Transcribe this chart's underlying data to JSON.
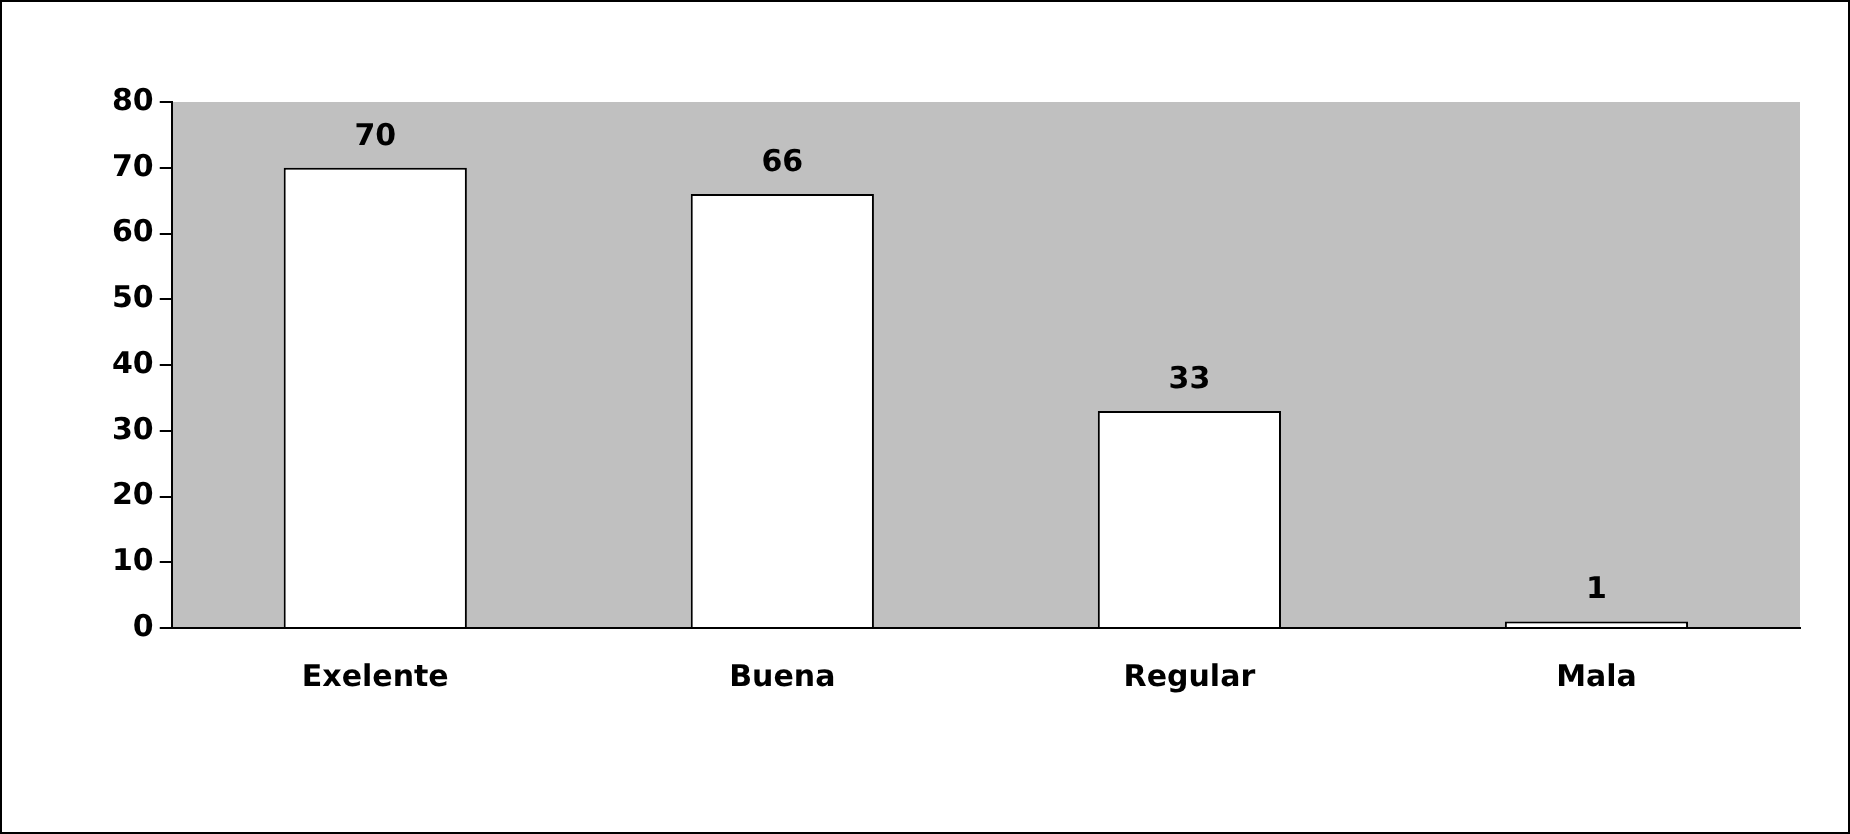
{
  "chart_data": {
    "type": "bar",
    "categories": [
      "Exelente",
      "Buena",
      "Regular",
      "Mala"
    ],
    "values": [
      70,
      66,
      33,
      1
    ],
    "color": "#ffffff",
    "ylim": [
      0,
      80
    ],
    "yticks": [
      0,
      10,
      20,
      30,
      40,
      50,
      60,
      70,
      80
    ],
    "grid": false,
    "legend": false,
    "data_labels": true
  }
}
